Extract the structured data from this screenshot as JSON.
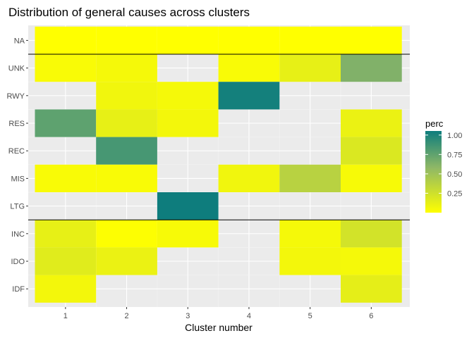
{
  "chart_data": {
    "type": "heatmap",
    "title": "Distribution of general causes across clusters",
    "xlabel": "Cluster number",
    "ylabel": "",
    "x": [
      "1",
      "2",
      "3",
      "4",
      "5",
      "6"
    ],
    "y": [
      "NA",
      "UNK",
      "RWY",
      "RES",
      "REC",
      "MIS",
      "LTG",
      "INC",
      "IDO",
      "IDF"
    ],
    "cells": [
      {
        "x": "1",
        "y": "NA",
        "value": 0.0
      },
      {
        "x": "2",
        "y": "NA",
        "value": 0.0
      },
      {
        "x": "3",
        "y": "NA",
        "value": 0.0
      },
      {
        "x": "4",
        "y": "NA",
        "value": 0.0
      },
      {
        "x": "5",
        "y": "NA",
        "value": 0.0
      },
      {
        "x": "6",
        "y": "NA",
        "value": 0.0
      },
      {
        "x": "1",
        "y": "UNK",
        "value": 0.03
      },
      {
        "x": "2",
        "y": "UNK",
        "value": 0.05
      },
      {
        "x": "4",
        "y": "UNK",
        "value": 0.03
      },
      {
        "x": "5",
        "y": "UNK",
        "value": 0.12
      },
      {
        "x": "6",
        "y": "UNK",
        "value": 0.6
      },
      {
        "x": "2",
        "y": "RWY",
        "value": 0.07
      },
      {
        "x": "3",
        "y": "RWY",
        "value": 0.05
      },
      {
        "x": "4",
        "y": "RWY",
        "value": 0.98
      },
      {
        "x": "1",
        "y": "RES",
        "value": 0.72
      },
      {
        "x": "2",
        "y": "RES",
        "value": 0.12
      },
      {
        "x": "3",
        "y": "RES",
        "value": 0.06
      },
      {
        "x": "6",
        "y": "RES",
        "value": 0.1
      },
      {
        "x": "2",
        "y": "REC",
        "value": 0.8
      },
      {
        "x": "6",
        "y": "REC",
        "value": 0.18
      },
      {
        "x": "1",
        "y": "MIS",
        "value": 0.03
      },
      {
        "x": "2",
        "y": "MIS",
        "value": 0.03
      },
      {
        "x": "4",
        "y": "MIS",
        "value": 0.07
      },
      {
        "x": "5",
        "y": "MIS",
        "value": 0.35
      },
      {
        "x": "6",
        "y": "MIS",
        "value": 0.04
      },
      {
        "x": "3",
        "y": "LTG",
        "value": 1.0
      },
      {
        "x": "1",
        "y": "INC",
        "value": 0.12
      },
      {
        "x": "2",
        "y": "INC",
        "value": 0.01
      },
      {
        "x": "3",
        "y": "INC",
        "value": 0.04
      },
      {
        "x": "5",
        "y": "INC",
        "value": 0.05
      },
      {
        "x": "6",
        "y": "INC",
        "value": 0.22
      },
      {
        "x": "1",
        "y": "IDO",
        "value": 0.15
      },
      {
        "x": "2",
        "y": "IDO",
        "value": 0.1
      },
      {
        "x": "5",
        "y": "IDO",
        "value": 0.06
      },
      {
        "x": "6",
        "y": "IDO",
        "value": 0.05
      },
      {
        "x": "1",
        "y": "IDF",
        "value": 0.06
      },
      {
        "x": "6",
        "y": "IDF",
        "value": 0.13
      }
    ],
    "legend": {
      "title": "perc",
      "position": "right",
      "breaks": [
        0.25,
        0.5,
        0.75,
        1.0
      ],
      "labels": [
        "0.25",
        "0.50",
        "0.75",
        "1.00"
      ],
      "range": [
        0.0,
        1.0
      ],
      "colors": {
        "low": "#ffff00",
        "mid": "#8fb866",
        "high": "#0e7d7d"
      }
    },
    "hlines_between": [
      [
        "NA",
        "UNK"
      ],
      [
        "LTG",
        "INC"
      ]
    ],
    "grid": true,
    "panel_background": "#ebebeb"
  }
}
